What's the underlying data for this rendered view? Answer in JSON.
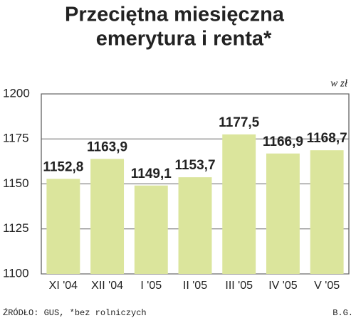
{
  "chart_data": {
    "type": "bar",
    "title": [
      "Przeciętna miesięczna",
      "emerytura i renta*"
    ],
    "unit": "w zł",
    "categories": [
      "XI '04",
      "XII '04",
      "I '05",
      "II '05",
      "III '05",
      "IV '05",
      "V '05"
    ],
    "values": [
      1152.8,
      1163.9,
      1149.1,
      1153.7,
      1177.5,
      1166.9,
      1168.7
    ],
    "value_labels": [
      "1152,8",
      "1163,9",
      "1149,1",
      "1153,7",
      "1177,5",
      "1166,9",
      "1168,7"
    ],
    "color": "#dbe59c",
    "ylim": [
      1100,
      1200
    ],
    "yticks": [
      1100,
      1125,
      1150,
      1175,
      1200
    ],
    "grid": true,
    "source": "ŹRÓDŁO: GUS, *bez rolniczych",
    "credit": "B.G."
  }
}
